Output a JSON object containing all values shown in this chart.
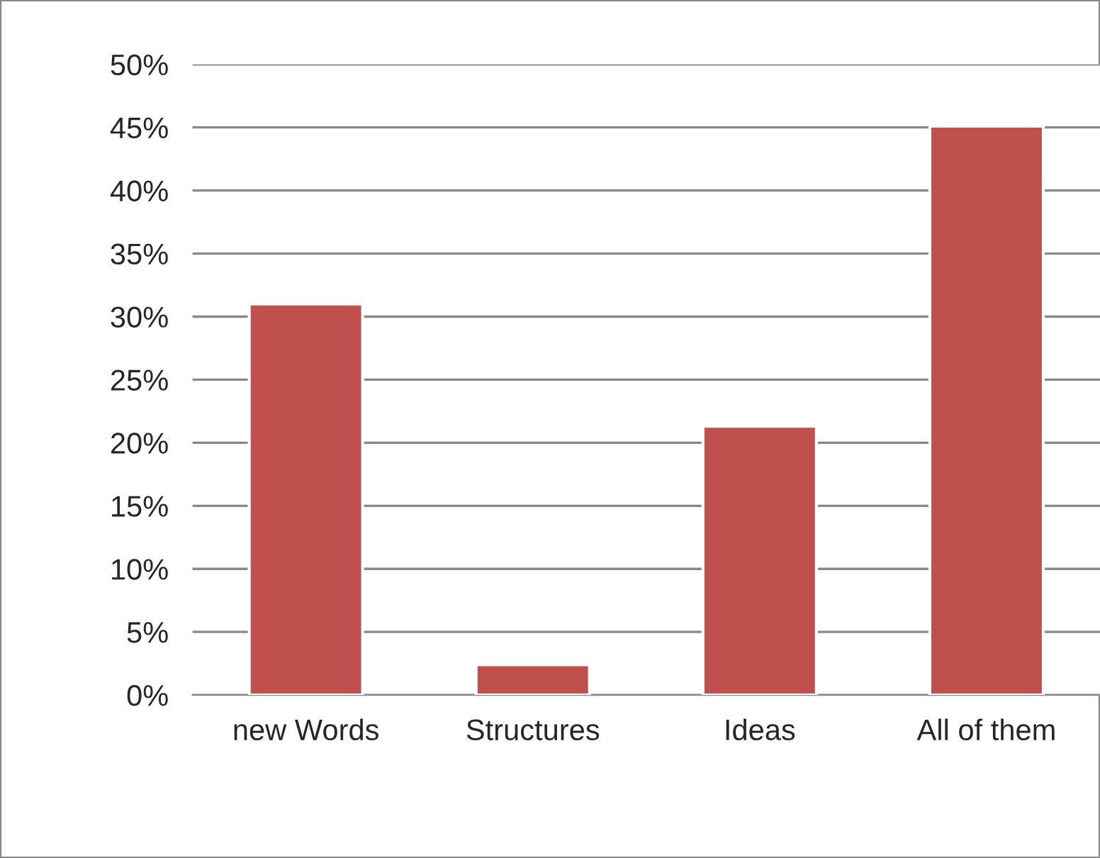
{
  "chart_data": {
    "type": "bar",
    "categories": [
      "new Words",
      "Structures",
      "Ideas",
      "All of them"
    ],
    "values": [
      31,
      2.4,
      21.3,
      45.1
    ],
    "color": "#c0504d",
    "ylim": [
      0,
      50
    ],
    "yticks": [
      {
        "value": 0,
        "label": "0%"
      },
      {
        "value": 5,
        "label": "5%"
      },
      {
        "value": 10,
        "label": "10%"
      },
      {
        "value": 15,
        "label": "15%"
      },
      {
        "value": 20,
        "label": "20%"
      },
      {
        "value": 25,
        "label": "25%"
      },
      {
        "value": 30,
        "label": "30%"
      },
      {
        "value": 35,
        "label": "35%"
      },
      {
        "value": 40,
        "label": "40%"
      },
      {
        "value": 45,
        "label": "45%"
      },
      {
        "value": 50,
        "label": "50%"
      }
    ],
    "grid": "y"
  }
}
